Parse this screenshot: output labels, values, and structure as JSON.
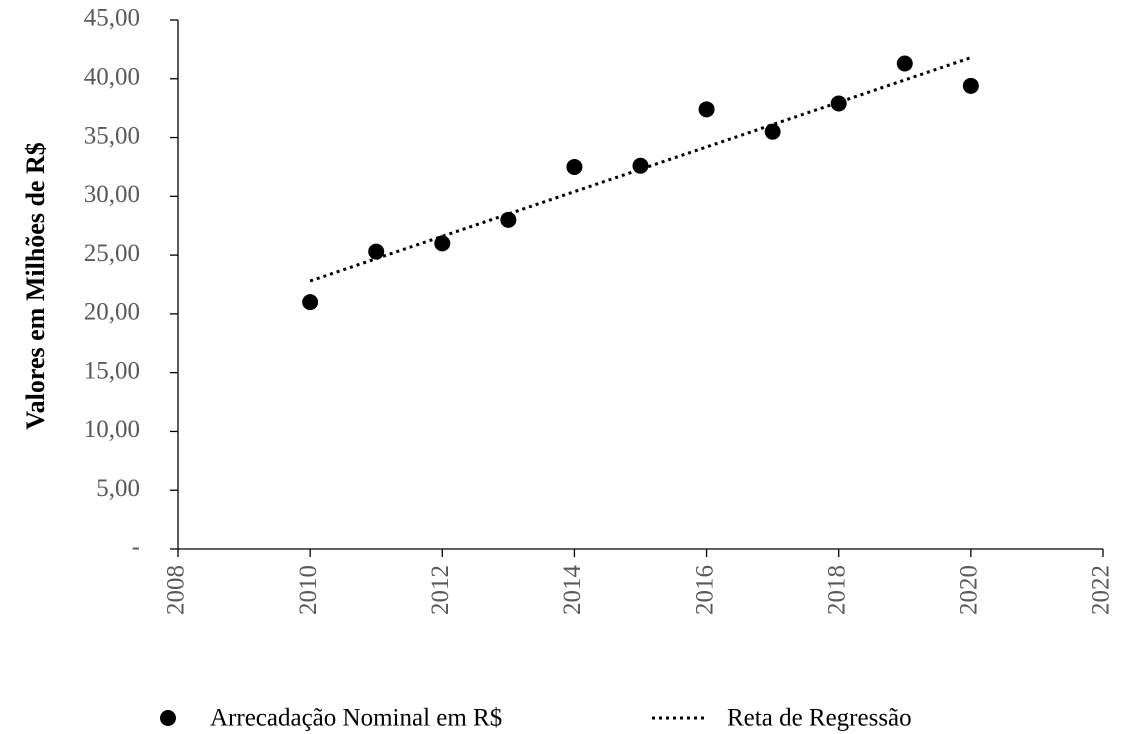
{
  "chart_data": {
    "type": "scatter",
    "y_label": "Valores em Milhões de R$",
    "xlim": [
      2008,
      2022
    ],
    "xticks": [
      2008,
      2010,
      2012,
      2014,
      2016,
      2018,
      2020,
      2022
    ],
    "ylim": [
      0,
      45
    ],
    "yticks": [
      {
        "value": 0,
        "label": "-"
      },
      {
        "value": 5,
        "label": "5,00"
      },
      {
        "value": 10,
        "label": "10,00"
      },
      {
        "value": 15,
        "label": "15,00"
      },
      {
        "value": 20,
        "label": "20,00"
      },
      {
        "value": 25,
        "label": "25,00"
      },
      {
        "value": 30,
        "label": "30,00"
      },
      {
        "value": 35,
        "label": "35,00"
      },
      {
        "value": 40,
        "label": "40,00"
      },
      {
        "value": 45,
        "label": "45,00"
      }
    ],
    "legend": "bottom",
    "series": [
      {
        "name": "Arrecadação Nominal em R$",
        "color": "#000000",
        "mode": "points",
        "x": [
          2010,
          2011,
          2012,
          2013,
          2014,
          2015,
          2016,
          2017,
          2018,
          2019,
          2020
        ],
        "values": [
          21.0,
          25.3,
          26.0,
          28.0,
          32.5,
          32.6,
          37.4,
          35.5,
          37.9,
          41.3,
          39.4
        ]
      },
      {
        "name": "Reta de Regressão",
        "color": "#000000",
        "mode": "dotted-line",
        "x": [
          2010,
          2020
        ],
        "values": [
          22.8,
          41.8
        ]
      }
    ]
  }
}
